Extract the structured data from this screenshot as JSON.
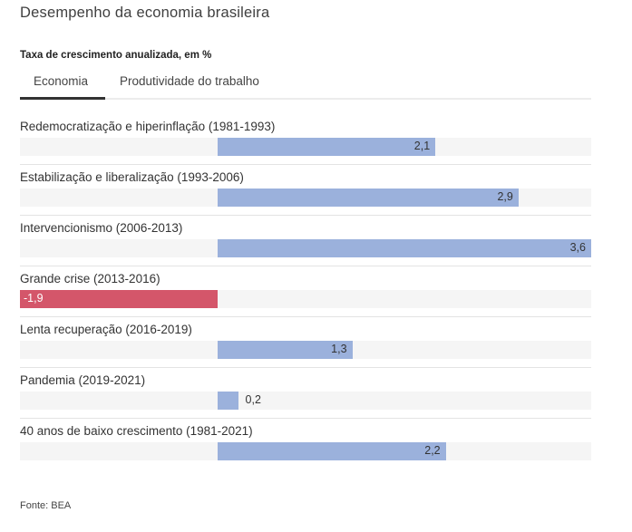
{
  "header": {
    "title": "Desempenho da economia brasileira",
    "subtitle": "Taxa de crescimento anualizada, em %"
  },
  "tabs": [
    {
      "label": "Economia",
      "active": true
    },
    {
      "label": "Produtividade do trabalho",
      "active": false
    }
  ],
  "colors": {
    "positive": "#9bb1dc",
    "negative": "#d4566a",
    "track": "#f5f5f5"
  },
  "footer": {
    "source": "Fonte: BEA"
  },
  "chart_data": {
    "type": "bar",
    "orientation": "horizontal",
    "title": "Desempenho da economia brasileira",
    "subtitle": "Taxa de crescimento anualizada, em %",
    "xlabel": "",
    "ylabel": "",
    "xlim": [
      -1.9,
      3.6
    ],
    "grid": false,
    "legend": null,
    "categories": [
      "Redemocratização e hiperinflação (1981-1993)",
      "Estabilização e liberalização (1993-2006)",
      "Intervencionismo (2006-2013)",
      "Grande crise (2013-2016)",
      "Lenta recuperação (2016-2019)",
      "Pandemia (2019-2021)",
      "40 anos de baixo crescimento (1981-2021)"
    ],
    "values": [
      2.1,
      2.9,
      3.6,
      -1.9,
      1.3,
      0.2,
      2.2
    ],
    "value_labels": [
      "2,1",
      "2,9",
      "3,6",
      "-1,9",
      "1,3",
      "0,2",
      "2,2"
    ],
    "source": "Fonte: BEA"
  }
}
